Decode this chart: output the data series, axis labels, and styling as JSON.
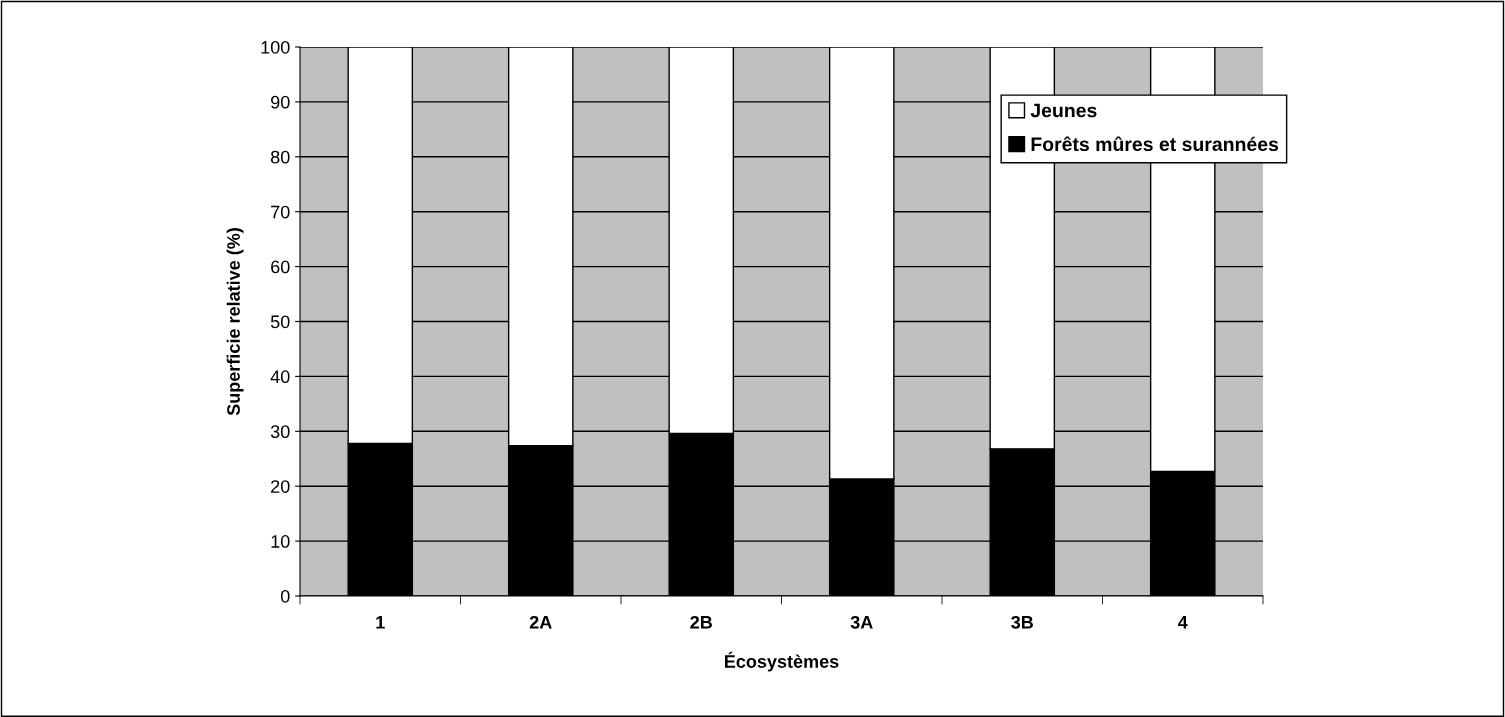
{
  "chart_data": {
    "type": "bar",
    "stacked": true,
    "categories": [
      "1",
      "2A",
      "2B",
      "3A",
      "3B",
      "4"
    ],
    "xlabel": "Écosystèmes",
    "ylabel": "Superficie relative (%)",
    "series": [
      {
        "name": "Forêts mûres et surannées",
        "color": "#000000",
        "values": [
          27.8,
          27.4,
          29.6,
          21.3,
          26.8,
          22.7
        ]
      },
      {
        "name": "Jeunes",
        "color": "#ffffff",
        "values": [
          72.2,
          72.6,
          70.4,
          78.7,
          73.2,
          77.3
        ]
      }
    ],
    "ylim": [
      0,
      100
    ],
    "yticks": [
      0,
      10,
      20,
      30,
      40,
      50,
      60,
      70,
      80,
      90,
      100
    ],
    "grid": "y",
    "legend": "top right"
  }
}
